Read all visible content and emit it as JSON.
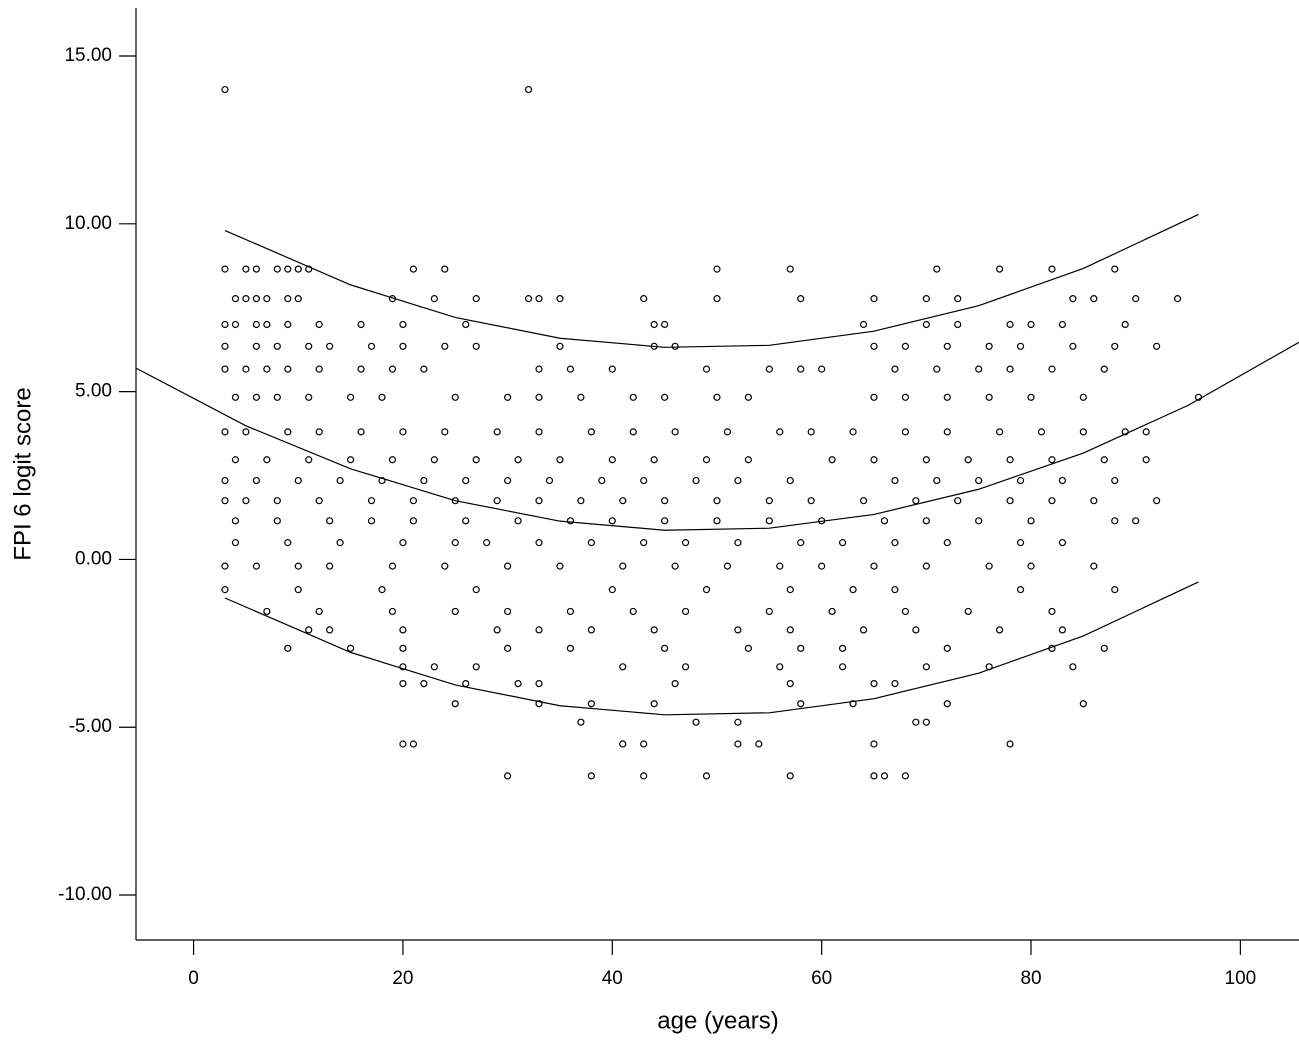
{
  "chart_data": {
    "type": "scatter",
    "x_label": "age (years)",
    "y_label": "FPI 6 logit score",
    "xlim": [
      -5.5,
      105.6
    ],
    "ylim": [
      -11.34,
      16.43
    ],
    "xticks": [
      0,
      20,
      40,
      60,
      80,
      100
    ],
    "yticks": [
      {
        "value": -10,
        "label": "-10.00"
      },
      {
        "value": -5,
        "label": "-5.00"
      },
      {
        "value": 0,
        "label": "0.00"
      },
      {
        "value": 5,
        "label": "5.00"
      },
      {
        "value": 10,
        "label": "10.00"
      },
      {
        "value": 15,
        "label": "15.00"
      }
    ],
    "color": "#000000",
    "x": [
      3,
      32,
      3,
      5,
      6,
      8,
      9,
      10,
      11,
      21,
      24,
      50,
      57,
      71,
      77,
      82,
      88,
      4,
      5,
      6,
      7,
      9,
      10,
      19,
      23,
      27,
      32,
      33,
      35,
      43,
      50,
      58,
      65,
      70,
      73,
      84,
      86,
      90,
      94,
      3,
      4,
      6,
      7,
      9,
      12,
      16,
      20,
      26,
      44,
      45,
      64,
      70,
      73,
      78,
      80,
      83,
      89,
      3,
      6,
      8,
      11,
      13,
      17,
      20,
      24,
      27,
      35,
      44,
      46,
      65,
      68,
      72,
      76,
      79,
      84,
      88,
      92,
      3,
      5,
      7,
      9,
      12,
      16,
      19,
      22,
      33,
      36,
      40,
      49,
      55,
      58,
      60,
      67,
      71,
      75,
      78,
      82,
      87,
      4,
      6,
      8,
      11,
      15,
      18,
      25,
      30,
      33,
      37,
      42,
      45,
      50,
      53,
      65,
      68,
      72,
      76,
      80,
      85,
      96,
      3,
      5,
      9,
      12,
      16,
      20,
      24,
      29,
      33,
      38,
      42,
      46,
      51,
      56,
      59,
      63,
      68,
      72,
      77,
      81,
      85,
      89,
      91,
      4,
      7,
      11,
      15,
      19,
      23,
      27,
      31,
      35,
      40,
      44,
      49,
      53,
      61,
      65,
      70,
      74,
      78,
      82,
      87,
      91,
      3,
      6,
      10,
      14,
      18,
      22,
      26,
      30,
      34,
      39,
      43,
      48,
      52,
      57,
      67,
      71,
      75,
      79,
      83,
      88,
      3,
      5,
      8,
      12,
      17,
      21,
      25,
      29,
      33,
      37,
      41,
      45,
      50,
      55,
      59,
      64,
      69,
      73,
      78,
      82,
      86,
      92,
      4,
      8,
      13,
      17,
      21,
      26,
      31,
      36,
      40,
      45,
      50,
      55,
      60,
      66,
      70,
      75,
      80,
      88,
      90,
      4,
      9,
      14,
      20,
      25,
      28,
      33,
      38,
      43,
      47,
      52,
      58,
      62,
      67,
      72,
      79,
      83,
      3,
      6,
      10,
      13,
      19,
      24,
      30,
      35,
      41,
      46,
      51,
      56,
      60,
      65,
      70,
      76,
      80,
      86,
      3,
      10,
      18,
      27,
      40,
      49,
      57,
      63,
      67,
      79,
      88,
      7,
      12,
      19,
      25,
      30,
      36,
      42,
      47,
      55,
      61,
      68,
      74,
      82,
      11,
      13,
      20,
      29,
      33,
      38,
      44,
      52,
      57,
      64,
      69,
      77,
      83,
      9,
      15,
      20,
      30,
      36,
      45,
      53,
      58,
      62,
      72,
      82,
      87,
      20,
      23,
      27,
      41,
      47,
      56,
      62,
      70,
      76,
      84,
      20,
      22,
      26,
      31,
      33,
      46,
      57,
      65,
      67,
      25,
      33,
      38,
      44,
      58,
      63,
      72,
      85,
      37,
      48,
      52,
      69,
      70,
      20,
      21,
      41,
      43,
      52,
      54,
      65,
      78,
      30,
      38,
      43,
      49,
      57,
      65,
      66,
      68
    ],
    "values": [
      14,
      14,
      8.65,
      8.65,
      8.65,
      8.65,
      8.65,
      8.65,
      8.65,
      8.65,
      8.65,
      8.65,
      8.65,
      8.65,
      8.65,
      8.65,
      8.65,
      7.77,
      7.77,
      7.77,
      7.77,
      7.77,
      7.77,
      7.77,
      7.77,
      7.77,
      7.77,
      7.77,
      7.77,
      7.77,
      7.77,
      7.77,
      7.77,
      7.77,
      7.77,
      7.77,
      7.77,
      7.77,
      7.77,
      7,
      7,
      7,
      7,
      7,
      7,
      7,
      7,
      7,
      7,
      7,
      7,
      7,
      7,
      7,
      7,
      7,
      7,
      6.35,
      6.35,
      6.35,
      6.35,
      6.35,
      6.35,
      6.35,
      6.35,
      6.35,
      6.35,
      6.35,
      6.35,
      6.35,
      6.35,
      6.35,
      6.35,
      6.35,
      6.35,
      6.35,
      6.35,
      5.67,
      5.67,
      5.67,
      5.67,
      5.67,
      5.67,
      5.67,
      5.67,
      5.67,
      5.67,
      5.67,
      5.67,
      5.67,
      5.67,
      5.67,
      5.67,
      5.67,
      5.67,
      5.67,
      5.67,
      5.67,
      4.83,
      4.83,
      4.83,
      4.83,
      4.83,
      4.83,
      4.83,
      4.83,
      4.83,
      4.83,
      4.83,
      4.83,
      4.83,
      4.83,
      4.83,
      4.83,
      4.83,
      4.83,
      4.83,
      4.83,
      4.83,
      3.8,
      3.8,
      3.8,
      3.8,
      3.8,
      3.8,
      3.8,
      3.8,
      3.8,
      3.8,
      3.8,
      3.8,
      3.8,
      3.8,
      3.8,
      3.8,
      3.8,
      3.8,
      3.8,
      3.8,
      3.8,
      3.8,
      3.8,
      2.97,
      2.97,
      2.97,
      2.97,
      2.97,
      2.97,
      2.97,
      2.97,
      2.97,
      2.97,
      2.97,
      2.97,
      2.97,
      2.97,
      2.97,
      2.97,
      2.97,
      2.97,
      2.97,
      2.97,
      2.97,
      2.35,
      2.35,
      2.35,
      2.35,
      2.35,
      2.35,
      2.35,
      2.35,
      2.35,
      2.35,
      2.35,
      2.35,
      2.35,
      2.35,
      2.35,
      2.35,
      2.35,
      2.35,
      2.35,
      2.35,
      1.75,
      1.75,
      1.75,
      1.75,
      1.75,
      1.75,
      1.75,
      1.75,
      1.75,
      1.75,
      1.75,
      1.75,
      1.75,
      1.75,
      1.75,
      1.75,
      1.75,
      1.75,
      1.75,
      1.75,
      1.75,
      1.75,
      1.15,
      1.15,
      1.15,
      1.15,
      1.15,
      1.15,
      1.15,
      1.15,
      1.15,
      1.15,
      1.15,
      1.15,
      1.15,
      1.15,
      1.15,
      1.15,
      1.15,
      1.15,
      1.15,
      0.5,
      0.5,
      0.5,
      0.5,
      0.5,
      0.5,
      0.5,
      0.5,
      0.5,
      0.5,
      0.5,
      0.5,
      0.5,
      0.5,
      0.5,
      0.5,
      0.5,
      -0.2,
      -0.2,
      -0.2,
      -0.2,
      -0.2,
      -0.2,
      -0.2,
      -0.2,
      -0.2,
      -0.2,
      -0.2,
      -0.2,
      -0.2,
      -0.2,
      -0.2,
      -0.2,
      -0.2,
      -0.2,
      -0.9,
      -0.9,
      -0.9,
      -0.9,
      -0.9,
      -0.9,
      -0.9,
      -0.9,
      -0.9,
      -0.9,
      -0.9,
      -1.55,
      -1.55,
      -1.55,
      -1.55,
      -1.55,
      -1.55,
      -1.55,
      -1.55,
      -1.55,
      -1.55,
      -1.55,
      -1.55,
      -1.55,
      -2.1,
      -2.1,
      -2.1,
      -2.1,
      -2.1,
      -2.1,
      -2.1,
      -2.1,
      -2.1,
      -2.1,
      -2.1,
      -2.1,
      -2.1,
      -2.65,
      -2.65,
      -2.65,
      -2.65,
      -2.65,
      -2.65,
      -2.65,
      -2.65,
      -2.65,
      -2.65,
      -2.65,
      -2.65,
      -3.2,
      -3.2,
      -3.2,
      -3.2,
      -3.2,
      -3.2,
      -3.2,
      -3.2,
      -3.2,
      -3.2,
      -3.7,
      -3.7,
      -3.7,
      -3.7,
      -3.7,
      -3.7,
      -3.7,
      -3.7,
      -3.7,
      -4.3,
      -4.3,
      -4.3,
      -4.3,
      -4.3,
      -4.3,
      -4.3,
      -4.3,
      -4.85,
      -4.85,
      -4.85,
      -4.85,
      -4.85,
      -5.5,
      -5.5,
      -5.5,
      -5.5,
      -5.5,
      -5.5,
      -5.5,
      -5.5,
      -6.45,
      -6.45,
      -6.45,
      -6.45,
      -6.45,
      -6.45,
      -6.45,
      -6.45
    ],
    "fits": [
      {
        "x": [
          3,
          15,
          25,
          35,
          45,
          55,
          65,
          75,
          85,
          96
        ],
        "values": [
          9.8,
          8.18,
          7.21,
          6.59,
          6.32,
          6.38,
          6.8,
          7.56,
          8.67,
          10.28
        ]
      },
      {
        "x": [
          -5.5,
          5,
          15,
          25,
          35,
          45,
          55,
          65,
          75,
          85,
          95,
          105.6
        ],
        "values": [
          5.7,
          3.98,
          2.7,
          1.75,
          1.14,
          0.87,
          0.93,
          1.34,
          2.09,
          3.17,
          4.59,
          6.47
        ]
      },
      {
        "x": [
          3,
          15,
          25,
          35,
          45,
          55,
          65,
          75,
          85,
          96
        ],
        "values": [
          -1.15,
          -2.77,
          -3.74,
          -4.36,
          -4.63,
          -4.57,
          -4.15,
          -3.39,
          -2.28,
          -0.67
        ]
      }
    ]
  }
}
